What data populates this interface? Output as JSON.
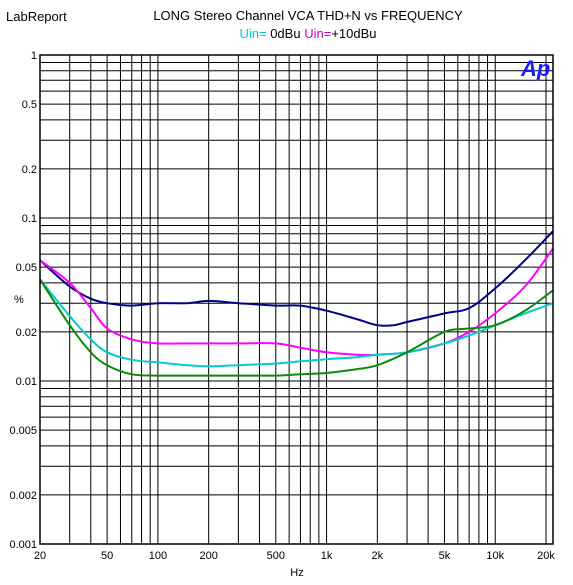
{
  "header": {
    "app_label": "LabReport",
    "title": "LONG Stereo Channel VCA THD+N vs FREQUENCY",
    "logo_text": "Ap"
  },
  "legend": [
    {
      "label": "Uin=",
      "value": " 0dBu",
      "label_color": "#00cccc"
    },
    {
      "label": "Uin=",
      "value": "+10dBu",
      "label_color": "#cc00cc"
    }
  ],
  "chart_data": {
    "type": "line",
    "title": "LONG Stereo Channel VCA THD+N vs FREQUENCY",
    "xlabel": "Hz",
    "ylabel": "%",
    "x_scale": "log",
    "y_scale": "log",
    "xlim": [
      20,
      22000
    ],
    "ylim": [
      0.001,
      1
    ],
    "grid": true,
    "x_ticks": [
      {
        "v": 20,
        "label": "20"
      },
      {
        "v": 50,
        "label": "50"
      },
      {
        "v": 100,
        "label": "100"
      },
      {
        "v": 200,
        "label": "200"
      },
      {
        "v": 500,
        "label": "500"
      },
      {
        "v": 1000,
        "label": "1k"
      },
      {
        "v": 2000,
        "label": "2k"
      },
      {
        "v": 5000,
        "label": "5k"
      },
      {
        "v": 10000,
        "label": "10k"
      },
      {
        "v": 20000,
        "label": "20k"
      }
    ],
    "y_ticks": [
      {
        "v": 1,
        "label": "1"
      },
      {
        "v": 0.5,
        "label": "0.5"
      },
      {
        "v": 0.2,
        "label": "0.2"
      },
      {
        "v": 0.1,
        "label": "0.1"
      },
      {
        "v": 0.05,
        "label": "0.05"
      },
      {
        "v": 0.02,
        "label": "0.02"
      },
      {
        "v": 0.01,
        "label": "0.01"
      },
      {
        "v": 0.005,
        "label": "0.005"
      },
      {
        "v": 0.002,
        "label": "0.002"
      },
      {
        "v": 0.001,
        "label": "0.001"
      }
    ],
    "series": [
      {
        "color": "#00008b",
        "points": [
          [
            20,
            0.055
          ],
          [
            30,
            0.038
          ],
          [
            40,
            0.032
          ],
          [
            50,
            0.03
          ],
          [
            70,
            0.029
          ],
          [
            100,
            0.03
          ],
          [
            150,
            0.03
          ],
          [
            200,
            0.031
          ],
          [
            300,
            0.03
          ],
          [
            500,
            0.029
          ],
          [
            700,
            0.029
          ],
          [
            1000,
            0.027
          ],
          [
            1500,
            0.024
          ],
          [
            2000,
            0.022
          ],
          [
            2500,
            0.022
          ],
          [
            3000,
            0.023
          ],
          [
            5000,
            0.026
          ],
          [
            7000,
            0.028
          ],
          [
            10000,
            0.037
          ],
          [
            15000,
            0.055
          ],
          [
            22000,
            0.083
          ]
        ]
      },
      {
        "color": "#ff00ff",
        "points": [
          [
            20,
            0.055
          ],
          [
            30,
            0.04
          ],
          [
            40,
            0.028
          ],
          [
            50,
            0.021
          ],
          [
            70,
            0.018
          ],
          [
            100,
            0.017
          ],
          [
            150,
            0.017
          ],
          [
            200,
            0.017
          ],
          [
            300,
            0.017
          ],
          [
            500,
            0.017
          ],
          [
            700,
            0.016
          ],
          [
            1000,
            0.015
          ],
          [
            1500,
            0.0145
          ],
          [
            2000,
            0.0145
          ],
          [
            3000,
            0.015
          ],
          [
            5000,
            0.017
          ],
          [
            7000,
            0.02
          ],
          [
            10000,
            0.026
          ],
          [
            15000,
            0.038
          ],
          [
            22000,
            0.065
          ]
        ]
      },
      {
        "color": "#00cccc",
        "points": [
          [
            20,
            0.042
          ],
          [
            30,
            0.025
          ],
          [
            40,
            0.018
          ],
          [
            50,
            0.015
          ],
          [
            70,
            0.0135
          ],
          [
            100,
            0.013
          ],
          [
            150,
            0.0125
          ],
          [
            200,
            0.0123
          ],
          [
            300,
            0.0125
          ],
          [
            500,
            0.0128
          ],
          [
            700,
            0.0132
          ],
          [
            1000,
            0.0136
          ],
          [
            1500,
            0.014
          ],
          [
            2000,
            0.0145
          ],
          [
            3000,
            0.015
          ],
          [
            5000,
            0.017
          ],
          [
            7000,
            0.019
          ],
          [
            10000,
            0.022
          ],
          [
            15000,
            0.026
          ],
          [
            22000,
            0.03
          ]
        ]
      },
      {
        "color": "#0b8b0b",
        "points": [
          [
            20,
            0.042
          ],
          [
            30,
            0.022
          ],
          [
            40,
            0.015
          ],
          [
            50,
            0.0125
          ],
          [
            70,
            0.011
          ],
          [
            100,
            0.0108
          ],
          [
            150,
            0.0108
          ],
          [
            200,
            0.0108
          ],
          [
            300,
            0.0108
          ],
          [
            500,
            0.0108
          ],
          [
            700,
            0.011
          ],
          [
            1000,
            0.0112
          ],
          [
            1500,
            0.0118
          ],
          [
            2000,
            0.0125
          ],
          [
            3000,
            0.015
          ],
          [
            5000,
            0.02
          ],
          [
            7000,
            0.021
          ],
          [
            10000,
            0.022
          ],
          [
            15000,
            0.027
          ],
          [
            22000,
            0.036
          ]
        ]
      }
    ]
  }
}
